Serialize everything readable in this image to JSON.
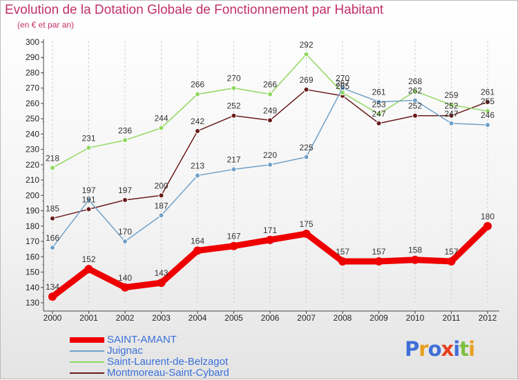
{
  "title": "Evolution de la Dotation Globale de Fonctionnement par Habitant",
  "subtitle": "(en € et par an)",
  "logo": {
    "text": "Proxiti",
    "letter_colors": [
      "#3f6fd8",
      "#e8a020",
      "#3f6fd8",
      "#e84020",
      "#3f6fd8",
      "#7cc040",
      "#e8a020"
    ]
  },
  "chart_data": {
    "type": "line",
    "x": [
      "2000",
      "2001",
      "2002",
      "2003",
      "2004",
      "2005",
      "2006",
      "2007",
      "2008",
      "2009",
      "2010",
      "2011",
      "2012"
    ],
    "ylim": [
      130,
      300
    ],
    "yticks": [
      "130",
      "140",
      "150",
      "160",
      "170",
      "180",
      "190",
      "200",
      "210",
      "220",
      "230",
      "240",
      "250",
      "260",
      "270",
      "280",
      "290",
      "300"
    ],
    "grid": "dashed vertical",
    "legend": "bottom-left",
    "series": [
      {
        "name": "SAINT-AMANT",
        "color": "#ee0000",
        "values": [
          134,
          152,
          140,
          143,
          164,
          167,
          171,
          175,
          157,
          157,
          158,
          157,
          180
        ]
      },
      {
        "name": "Juignac",
        "color": "#6fa0c8",
        "values": [
          166,
          197,
          170,
          187,
          213,
          217,
          220,
          225,
          270,
          261,
          262,
          247,
          246
        ]
      },
      {
        "name": "Saint-Laurent-de-Belzagot",
        "color": "#90d860",
        "values": [
          218,
          231,
          236,
          244,
          266,
          270,
          266,
          292,
          267,
          253,
          268,
          259,
          255
        ]
      },
      {
        "name": "Montmoreau-Saint-Cybard",
        "color": "#6a1a1a",
        "values": [
          185,
          191,
          197,
          200,
          242,
          252,
          249,
          269,
          265,
          247,
          252,
          252,
          261
        ]
      }
    ]
  }
}
